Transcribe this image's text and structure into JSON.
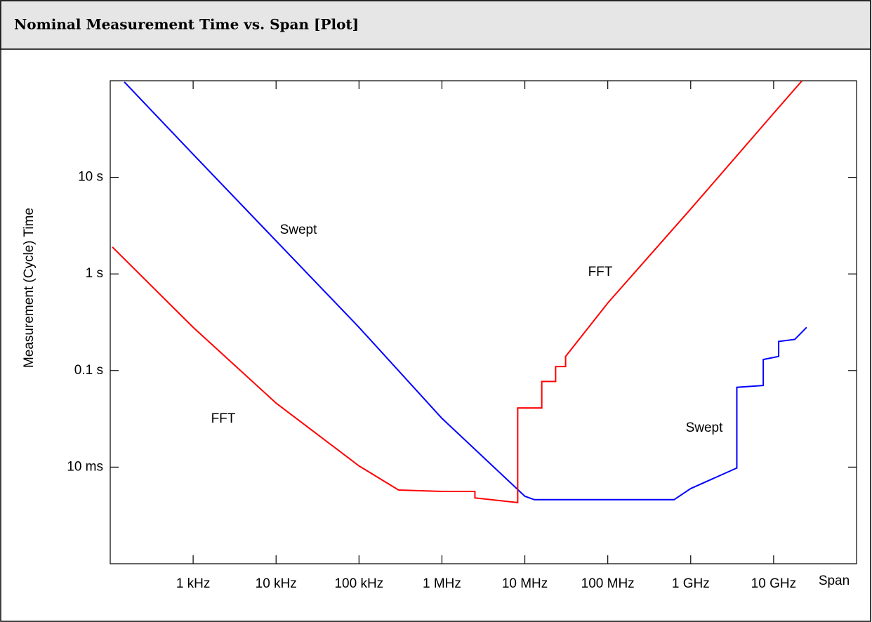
{
  "chart_data": {
    "type": "line",
    "title": "Nominal Measurement Time vs. Span [Plot]",
    "x_label": "Span",
    "y_label": "Measurement (Cycle) Time",
    "xscale": "log",
    "yscale": "log",
    "xlim": [
      100,
      100000000000
    ],
    "ylim": [
      0.001,
      100
    ],
    "xticks": [
      {
        "value": 1000,
        "label": "1 kHz"
      },
      {
        "value": 10000,
        "label": "10 kHz"
      },
      {
        "value": 100000,
        "label": "100 kHz"
      },
      {
        "value": 1000000,
        "label": "1 MHz"
      },
      {
        "value": 10000000,
        "label": "10 MHz"
      },
      {
        "value": 100000000,
        "label": "100 MHz"
      },
      {
        "value": 1000000000,
        "label": "1 GHz"
      },
      {
        "value": 10000000000,
        "label": "10 GHz"
      }
    ],
    "yticks": [
      {
        "value": 10,
        "label": "10 s"
      },
      {
        "value": 1,
        "label": "1 s"
      },
      {
        "value": 0.1,
        "label": "0.1 s"
      },
      {
        "value": 0.01,
        "label": "10 ms"
      }
    ],
    "annotations": [
      "Swept",
      "FFT",
      "FFT",
      "Swept"
    ],
    "series": [
      {
        "name": "Swept",
        "color": "#0000ff",
        "x": [
          148,
          1000,
          10000,
          100000,
          1000000,
          10000000,
          13000000,
          630000000,
          1000000000,
          3600000000,
          3600000000,
          7500000000,
          7500000000,
          11500000000,
          11500000000,
          18000000000,
          25000000000
        ],
        "values": [
          97,
          17.3,
          2.2,
          0.28,
          0.032,
          0.005,
          0.0046,
          0.0046,
          0.006,
          0.0098,
          0.067,
          0.07,
          0.13,
          0.14,
          0.2,
          0.21,
          0.28
        ]
      },
      {
        "name": "FFT",
        "color": "#ff0000",
        "x": [
          106,
          1000,
          10000,
          100000,
          300000,
          1000000,
          2500000,
          2500000,
          8200000,
          8200000,
          16000000,
          16000000,
          23500000,
          23500000,
          31000000,
          31000000,
          100000000,
          1000000000,
          10000000000,
          22000000000
        ],
        "values": [
          1.9,
          0.28,
          0.046,
          0.0103,
          0.0058,
          0.0056,
          0.0056,
          0.0048,
          0.0043,
          0.041,
          0.041,
          0.077,
          0.077,
          0.11,
          0.11,
          0.14,
          0.5,
          4.7,
          46,
          100
        ]
      }
    ]
  }
}
